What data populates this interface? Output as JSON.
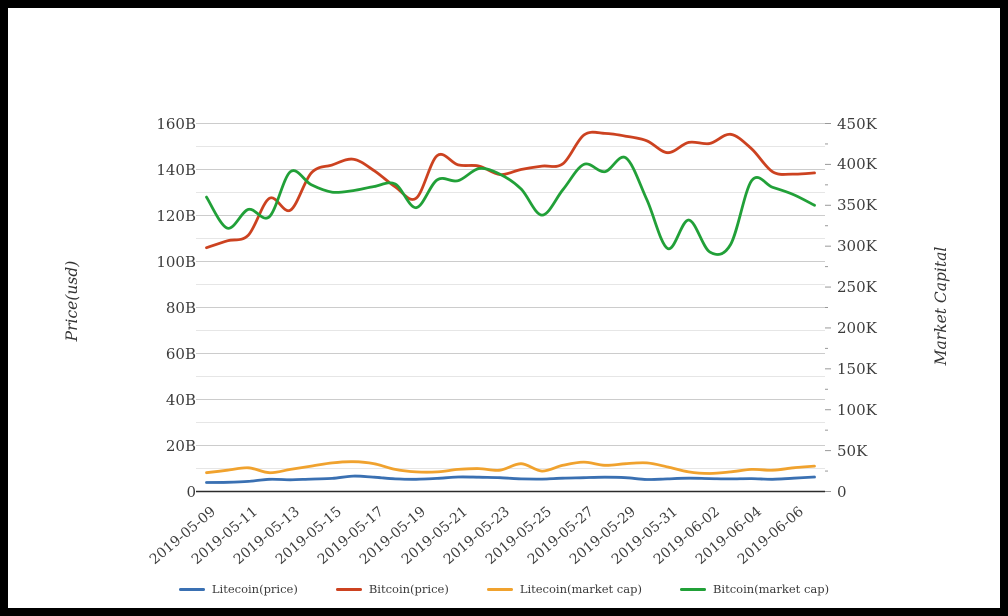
{
  "chart_data": {
    "type": "line",
    "smooth": true,
    "grid": true,
    "legend_position": "bottom",
    "x": [
      "2019-05-09",
      "2019-05-10",
      "2019-05-11",
      "2019-05-12",
      "2019-05-13",
      "2019-05-14",
      "2019-05-15",
      "2019-05-16",
      "2019-05-17",
      "2019-05-18",
      "2019-05-19",
      "2019-05-20",
      "2019-05-21",
      "2019-05-22",
      "2019-05-23",
      "2019-05-24",
      "2019-05-25",
      "2019-05-26",
      "2019-05-27",
      "2019-05-28",
      "2019-05-29",
      "2019-05-30",
      "2019-05-31",
      "2019-06-01",
      "2019-06-02",
      "2019-06-03",
      "2019-06-04",
      "2019-06-05",
      "2019-06-06",
      "2019-06-07"
    ],
    "x_tick_labels": [
      "2019-05-09",
      "2019-05-11",
      "2019-05-13",
      "2019-05-15",
      "2019-05-17",
      "2019-05-19",
      "2019-05-21",
      "2019-05-23",
      "2019-05-25",
      "2019-05-27",
      "2019-05-29",
      "2019-05-31",
      "2019-06-02",
      "2019-06-04",
      "2019-06-06"
    ],
    "left_axis": {
      "title": "Price(usd)",
      "unit": "B",
      "min": 0,
      "max": 160,
      "tick_step": 20,
      "ticks": [
        "0",
        "20B",
        "40B",
        "60B",
        "80B",
        "100B",
        "120B",
        "140B",
        "160B"
      ]
    },
    "right_axis": {
      "title": "Market Capital",
      "unit": "K",
      "min": 0,
      "max": 450,
      "tick_step": 50,
      "ticks": [
        "0",
        "50K",
        "100K",
        "150K",
        "200K",
        "250K",
        "300K",
        "350K",
        "400K",
        "450K"
      ]
    },
    "series": [
      {
        "name": "Litecoin(price)",
        "axis": "left",
        "color": "#3a70b2",
        "values": [
          3.9,
          4.0,
          4.4,
          5.3,
          5.1,
          5.4,
          5.7,
          6.7,
          6.2,
          5.5,
          5.3,
          5.7,
          6.3,
          6.2,
          6.0,
          5.5,
          5.4,
          5.8,
          6.0,
          6.2,
          6.0,
          5.2,
          5.5,
          5.8,
          5.6,
          5.5,
          5.6,
          5.3,
          5.8,
          6.3
        ]
      },
      {
        "name": "Bitcoin(price)",
        "axis": "left",
        "color": "#cc4220",
        "values": [
          106,
          109,
          111.5,
          127.5,
          122.3,
          138.5,
          142,
          144.5,
          139.5,
          132.5,
          127.5,
          146,
          142,
          141.5,
          137.8,
          140,
          141.5,
          142.5,
          155,
          155.7,
          154.5,
          152.5,
          147.3,
          151.8,
          151.3,
          155.3,
          149,
          139,
          138,
          138.5
        ]
      },
      {
        "name": "Litecoin(market cap)",
        "axis": "right",
        "color": "#f0a22e",
        "values": [
          23,
          26,
          29,
          23,
          27,
          31,
          35,
          36.5,
          34,
          27,
          24,
          24,
          27,
          28,
          26,
          34,
          25,
          32,
          36,
          32,
          34,
          35,
          30,
          24,
          22,
          24,
          27,
          26,
          29,
          31
        ]
      },
      {
        "name": "Bitcoin(market cap)",
        "axis": "right",
        "color": "#21a038",
        "values": [
          360,
          322,
          345,
          336,
          391,
          375,
          366,
          368,
          373,
          376,
          347,
          381,
          380,
          395,
          388,
          370,
          338,
          369,
          400,
          391,
          408,
          357,
          297,
          332,
          293,
          302,
          380,
          372,
          363,
          350
        ]
      }
    ]
  }
}
